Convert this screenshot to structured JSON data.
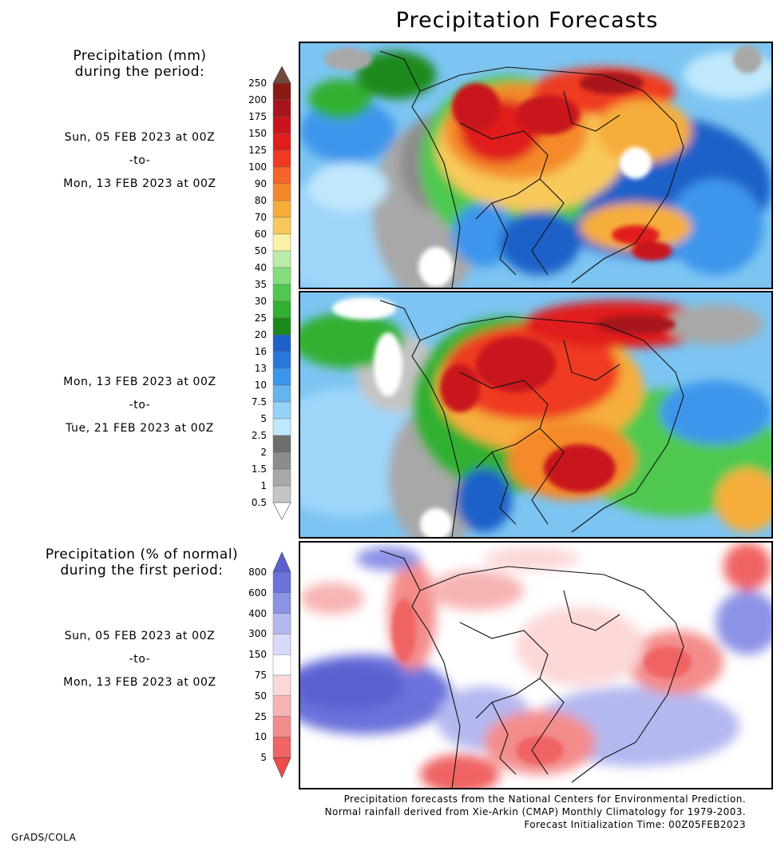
{
  "header": {
    "title": "Precipitation Forecasts"
  },
  "amount_legend": {
    "heading_line1": "Precipitation (mm)",
    "heading_line2": "during the period:",
    "ticks": [
      "250",
      "200",
      "175",
      "150",
      "125",
      "100",
      "90",
      "80",
      "70",
      "60",
      "50",
      "40",
      "35",
      "30",
      "25",
      "20",
      "16",
      "13",
      "10",
      "7.5",
      "5",
      "2.5",
      "2",
      "1.5",
      "1",
      "0.5"
    ],
    "colors": [
      "#8c1a14",
      "#a8141c",
      "#c8141c",
      "#e01c1c",
      "#ef3a22",
      "#f56428",
      "#f48a2c",
      "#f6ad3a",
      "#f8c95a",
      "#fbf2a8",
      "#b8eca8",
      "#84de7c",
      "#50c850",
      "#30b030",
      "#1a8a1a",
      "#1c60c8",
      "#2878dc",
      "#3c96ec",
      "#64b4f0",
      "#96d2f8",
      "#c0e8fc",
      "#6e6e6e",
      "#8c8c8c",
      "#a8a8a8",
      "#c4c4c4"
    ],
    "top_cap_color": "#6e4a3c"
  },
  "period1": {
    "start": "Sun, 05 FEB 2023 at 00Z",
    "to": "-to-",
    "end": "Mon, 13 FEB 2023 at 00Z"
  },
  "period2": {
    "start": "Mon, 13 FEB 2023 at 00Z",
    "to": "-to-",
    "end": "Tue, 21 FEB 2023 at 00Z"
  },
  "percent_legend": {
    "heading_line1": "Precipitation (% of normal)",
    "heading_line2": "during the first period:",
    "ticks": [
      "800",
      "600",
      "400",
      "300",
      "150",
      "75",
      "50",
      "25",
      "10",
      "5"
    ],
    "colors": [
      "#6c72dc",
      "#8c92e6",
      "#b4b8f0",
      "#d8dafa",
      "#ffffff",
      "#fcd8d8",
      "#f8b4b4",
      "#f48c8c",
      "#f06464"
    ],
    "top_cap_color": "#5a60d0",
    "bottom_cap_color": "#ee4a4a"
  },
  "period3": {
    "start": "Sun, 05 FEB 2023 at 00Z",
    "to": "-to-",
    "end": "Mon, 13 FEB 2023 at 00Z"
  },
  "footer": {
    "line1": "Precipitation forecasts from the National Centers for Environmental Prediction.",
    "line2": "Normal rainfall derived from Xie-Arkin (CMAP) Monthly Climatology for 1979-2003.",
    "line3": "Forecast Initialization Time: 00Z05FEB2023"
  },
  "credit": "GrADS/COLA"
}
